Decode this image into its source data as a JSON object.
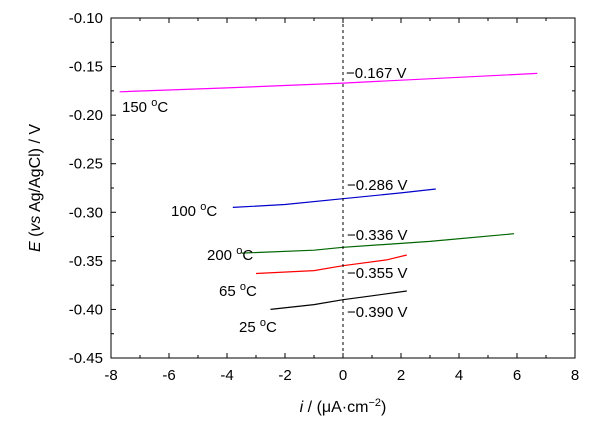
{
  "chart_data": {
    "type": "line",
    "xlabel_var": "i",
    "xlabel_unit": " / (μA·cm",
    "xlabel_sup": "−2",
    "xlabel_close": ")",
    "ylabel_var": "E",
    "ylabel_mid": " (",
    "ylabel_vs": "vs",
    "ylabel_rest": " Ag/AgCl) / V",
    "xlim": [
      -8,
      8
    ],
    "ylim": [
      -0.45,
      -0.1
    ],
    "xticks": [
      -8,
      -6,
      -4,
      -2,
      0,
      2,
      4,
      6,
      8
    ],
    "xtick_labels": [
      "-8",
      "-6",
      "-4",
      "-2",
      "0",
      "2",
      "4",
      "6",
      "8"
    ],
    "yticks": [
      -0.1,
      -0.15,
      -0.2,
      -0.25,
      -0.3,
      -0.35,
      -0.4,
      -0.45
    ],
    "ytick_labels": [
      "-0.10",
      "-0.15",
      "-0.20",
      "-0.25",
      "-0.30",
      "-0.35",
      "-0.40",
      "-0.45"
    ],
    "zero_line_x": 0,
    "series": [
      {
        "name": "150 °C",
        "label_num": "150 ",
        "label_unit": "C",
        "color": "#ff00ff",
        "x": [
          -7.7,
          -4,
          0,
          4,
          6.7
        ],
        "y": [
          -0.176,
          -0.172,
          -0.167,
          -0.161,
          -0.157
        ],
        "potential_label": "−0.167 V"
      },
      {
        "name": "100 °C",
        "label_num": "100 ",
        "label_unit": "C",
        "color": "#0000cc",
        "x": [
          -3.8,
          -2,
          0,
          2,
          3.2
        ],
        "y": [
          -0.295,
          -0.292,
          -0.286,
          -0.28,
          -0.276
        ],
        "potential_label": "−0.286 V"
      },
      {
        "name": "200 °C",
        "label_num": "200 ",
        "label_unit": "C",
        "color": "#006600",
        "x": [
          -3.5,
          -1,
          0,
          3,
          5.9
        ],
        "y": [
          -0.342,
          -0.339,
          -0.336,
          -0.33,
          -0.322
        ],
        "potential_label": "−0.336 V"
      },
      {
        "name": "65 °C",
        "label_num": "65 ",
        "label_unit": "C",
        "color": "#ff0000",
        "x": [
          -3.0,
          -1,
          0,
          1.5,
          2.2
        ],
        "y": [
          -0.363,
          -0.36,
          -0.355,
          -0.349,
          -0.344
        ],
        "potential_label": "−0.355 V"
      },
      {
        "name": "25 °C",
        "label_num": "25 ",
        "label_unit": "C",
        "color": "#000000",
        "x": [
          -2.5,
          -1,
          0,
          1,
          2.2
        ],
        "y": [
          -0.4,
          -0.395,
          -0.39,
          -0.386,
          -0.381
        ],
        "potential_label": "−0.390 V"
      }
    ],
    "degree_sup": "o"
  }
}
